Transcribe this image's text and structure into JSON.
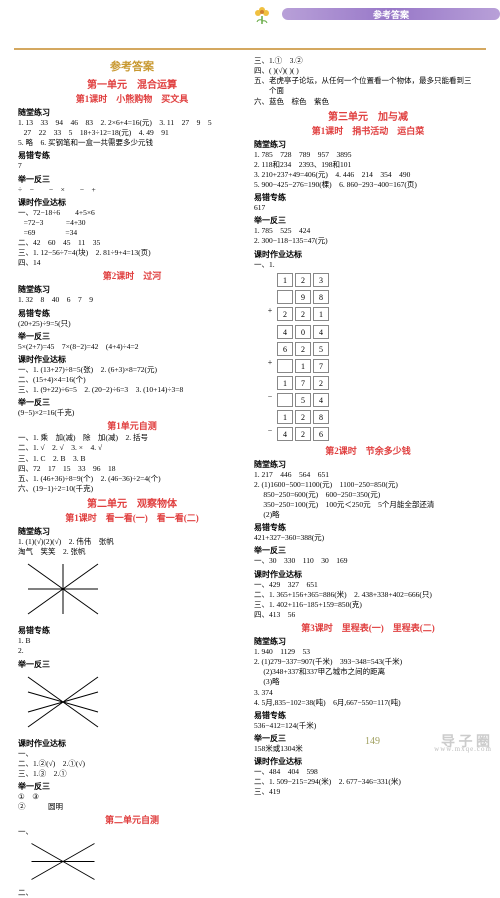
{
  "header": {
    "banner": "参考答案"
  },
  "mainTitle": "参考答案",
  "left": {
    "unit1": "第一单元　混合运算",
    "lesson1": "第1课时　小熊购物　买文具",
    "s1": "随堂练习",
    "l1": "1. 13　33　94　46　83　2. 2×6+4=16(元)　3. 11　27　9　5",
    "l2": "   27　22　33　5　18+3÷12=18(元)　4. 49　91",
    "l3": "5. 略　6. 买钢笔和一盒一共需要多少元钱",
    "s2": "易错专练",
    "l4": "7",
    "s3": "举一反三",
    "l5": "÷　−　　−　×　　−　+",
    "s4": "课时作业达标",
    "l6": "一、72−18÷6　　4+5×6",
    "l7": "   =72−3　　　=4+30",
    "l8": "   =69　　　　=34",
    "l9": "二、42　60　45　11　35",
    "l10": "三、1. 12−56÷7=4(块)　2. 81÷9+4=13(页)",
    "l11": "四、14",
    "lesson2": "第2课时　过河",
    "s5": "随堂练习",
    "l12": "1. 32　8　40　6　7　9",
    "s6": "易错专练",
    "l13": "(20+25)÷9=5(只)",
    "s7": "举一反三",
    "l14": "5×(2+7)=45　7×(8−2)=42　(4+4)÷4=2",
    "s8": "课时作业达标",
    "l15": "一、1. (13+27)÷8=5(张)　2. (6+3)×8=72(元)",
    "l16": "二、(15+4)×4=16(个)",
    "l17": "三、1. (9+22)÷6=5　2. (20−2)÷6=3　3. (10+14)÷3=8",
    "s9": "举一反三",
    "l18": "(9−5)×2=16(千克)",
    "test1": "第1单元自测",
    "t1": "一、1. 乘　加(减)　除　加(减)　2. 括号",
    "t2": "二、1. √　2. √　3. ×　4. √",
    "t3": "三、1. C　2. B　3. B",
    "t4": "四、72　17　15　33　96　18",
    "t5": "五、1. (46+36)÷8=9(个)　2. (46−36)÷2=4(个)",
    "t6": "六、(19−1)÷2=10(千克)",
    "unit2": "第二单元　观察物体",
    "lesson3": "第1课时　看一看(一)　看一看(二)",
    "s10": "随堂练习",
    "l19": "1. (1)(√)(2)(√)　2. 伟伟　张帆",
    "l20": "淘气　笑笑　2. 张帆",
    "s11": "易错专练",
    "l21": "1. B",
    "l22": "2.",
    "s12": "举一反三",
    "s13": "课时作业达标",
    "l23": "一、",
    "l24": "二、1.②(√)　2.①(√)",
    "l25": "三、1.③　2.①",
    "s14": "举一反三",
    "l26": "①　③",
    "l27": "②　　　圆明",
    "test2": "第二单元自测",
    "l28": "一、",
    "l29": "二、"
  },
  "right": {
    "r1": "三、1.①　3.②",
    "r2": "四、( )(√)( )( )",
    "r3": "五、老虎亭子论坛，从任何一个位置看一个物体，最多只能看到三",
    "r4": "　　个面",
    "r5": "六、蓝色　棕色　紫色",
    "unit3": "第三单元　加与减",
    "lesson1": "第1课时　捐书活动　运白菜",
    "s1": "随堂练习",
    "r6": "1. 785　728　789　957　3895",
    "r7": "2. 118和234　2393、198和101",
    "r8": "3. 210+237+49=406(元)　4. 446　214　354　490",
    "r9": "5. 900−425−276=190(棵)　6. 860−293−400=167(页)",
    "s2": "易错专练",
    "r10": "617",
    "s3": "举一反三",
    "r11": "1. 785　525　424",
    "r12": "2. 300−118−135=47(元)",
    "s4": "课时作业达标",
    "r13": "一、1.",
    "grid1": [
      [
        "1",
        "2",
        "3"
      ],
      [
        "",
        "9",
        "8"
      ],
      [
        "2",
        "2",
        "1"
      ]
    ],
    "grid2": [
      [
        "4",
        "0",
        "4"
      ],
      [
        "6",
        "2",
        "5"
      ],
      [
        "",
        "1",
        "7"
      ],
      [
        "1",
        "7",
        "2"
      ],
      [
        "",
        "5",
        "4"
      ],
      [
        "1",
        "2",
        "8"
      ],
      [
        "4",
        "2",
        "6"
      ]
    ],
    "lesson2": "第2课时　节余多少钱",
    "s5": "随堂练习",
    "r14": "1. 217　446　564　651",
    "r15": "2. (1)1600−500=1100(元)　1100−250=850(元)",
    "r16": "　 850−250=600(元)　600−250=350(元)",
    "r17": "　 350−250=100(元)　100元＜250元　5个月能全部还清",
    "r18": "　 (2)略",
    "s6": "易错专练",
    "r19": "421+327−360=388(元)",
    "s7": "举一反三",
    "r20": "一、30　330　110　30　169",
    "s8": "课时作业达标",
    "r21": "一、429　327　651",
    "r22": "二、1. 365+156+365=886(米)　2. 438+338+402=666(只)",
    "r23": "三、1. 402+116−185+159=850(克)",
    "r24": "四、413　56",
    "lesson3": "第3课时　里程表(一)　里程表(二)",
    "s9": "随堂练习",
    "r25": "1. 940　1129　53",
    "r26": "2. (1)279−337=907(千米)　393−348=543(千米)",
    "r27": "　 (2)348+337和337甲乙城市之间的距离",
    "r28": "　 (3)略",
    "r29": "3. 374",
    "r30": "4. 5月,835−102=38(吨)　6月,667−550=117(吨)",
    "s10": "易错专练",
    "r31": "536−412=124(千米)",
    "s11": "举一反三",
    "r32": "158米或1304米",
    "s12": "课时作业达标",
    "r33": "一、484　404　598",
    "r34": "二、1. 509−215=294(米)　2. 677−346=331(米)",
    "r35": "三、419"
  },
  "pageNum": "149",
  "wm": "导 子 圈",
  "wm2": "www.mxqe.com"
}
